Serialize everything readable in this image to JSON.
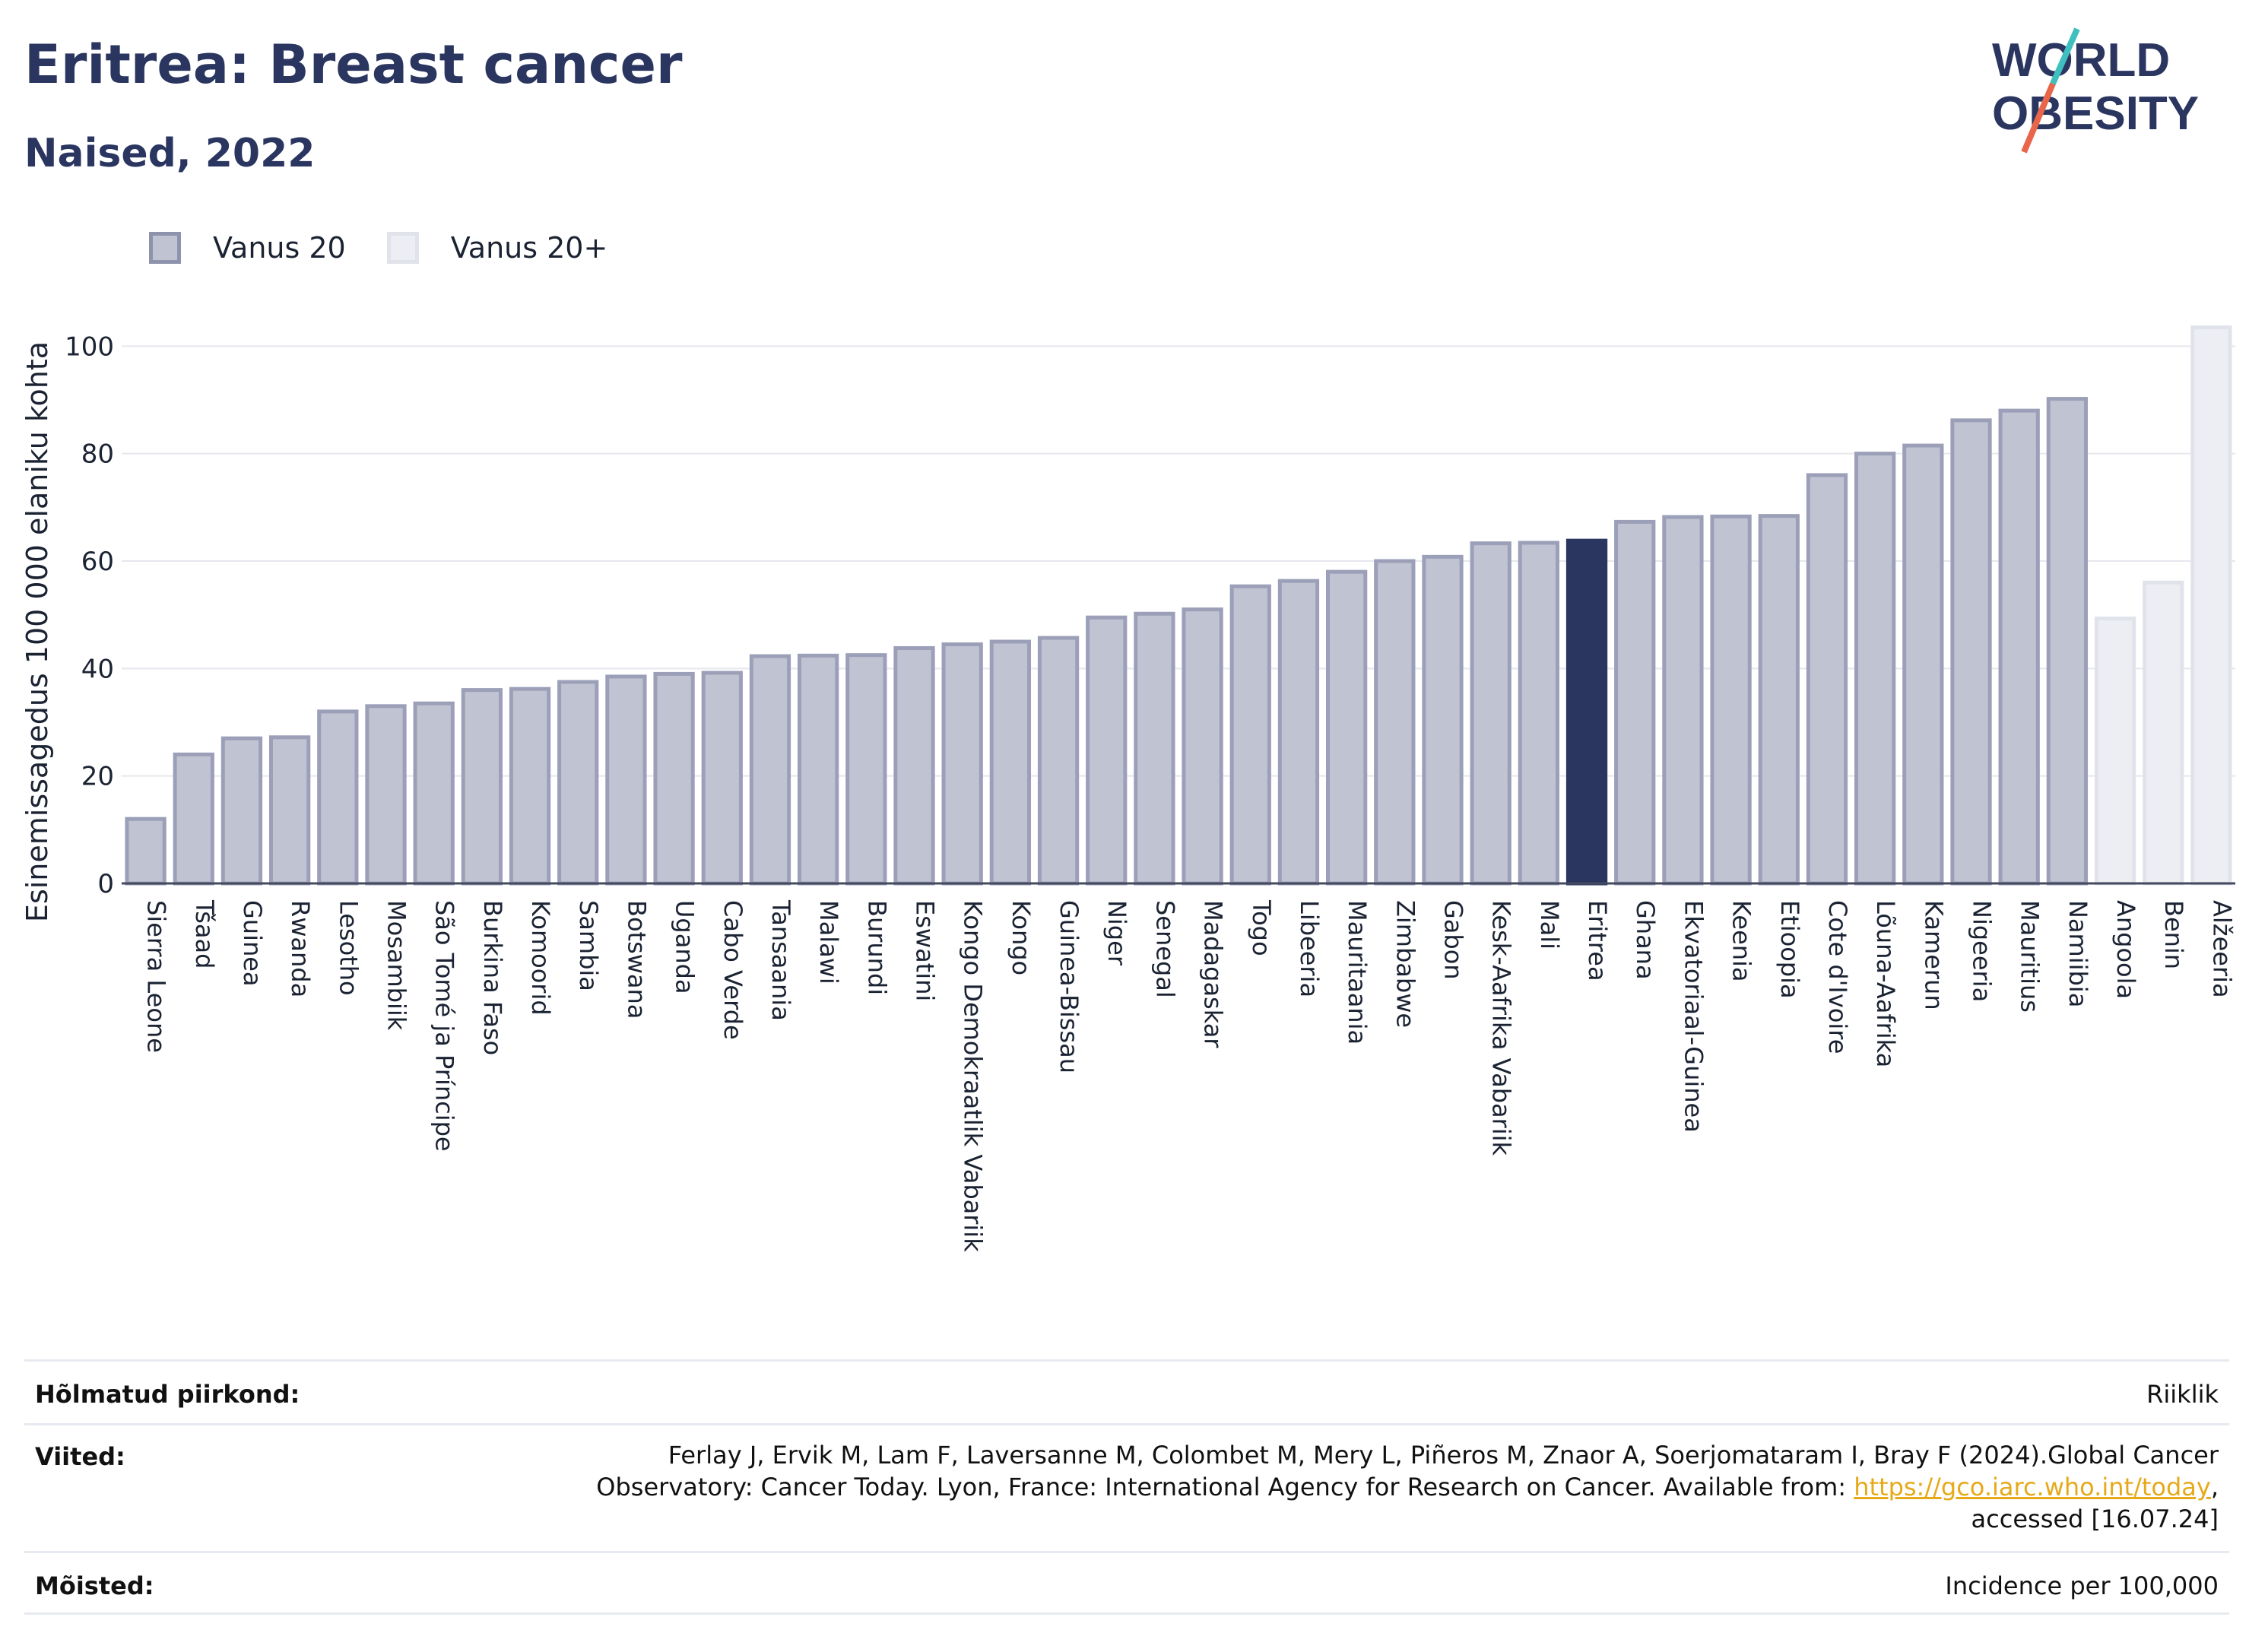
{
  "header": {
    "title": "Eritrea: Breast cancer",
    "subtitle": "Naised, 2022"
  },
  "logo": {
    "line1": "WORLD",
    "line2": "OBESITY",
    "colors": {
      "text": "#2a3560",
      "slash_teal": "#3fbfbf",
      "slash_red": "#e8664a"
    }
  },
  "legend": [
    {
      "label": "Vanus 20",
      "fill": "#c0c3d2",
      "stroke": "#8e93ad"
    },
    {
      "label": "Vanus 20+",
      "fill": "#eceef3",
      "stroke": "#e1e3ea"
    }
  ],
  "chart_data": {
    "type": "bar",
    "ylabel": "Esinemissagedus 100 000 elaniku kohta",
    "ylim": [
      0,
      105
    ],
    "yticks": [
      0,
      20,
      40,
      60,
      80,
      100
    ],
    "grid": true,
    "legend_position": "top-left",
    "categories": [
      "Sierra Leone",
      "Tšaad",
      "Guinea",
      "Rwanda",
      "Lesotho",
      "Mosambiik",
      "São Tomé ja Príncipe",
      "Burkina Faso",
      "Komoorid",
      "Sambia",
      "Botswana",
      "Uganda",
      "Cabo Verde",
      "Tansaania",
      "Malawi",
      "Burundi",
      "Eswatini",
      "Kongo Demokraatlik Vabariik",
      "Kongo",
      "Guinea-Bissau",
      "Niger",
      "Senegal",
      "Madagaskar",
      "Togo",
      "Libeeria",
      "Mauritaania",
      "Zimbabwe",
      "Gabon",
      "Kesk-Aafrika Vabariik",
      "Mali",
      "Eritrea",
      "Ghana",
      "Ekvatoriaal-Guinea",
      "Keenia",
      "Etioopia",
      "Cote d'Ivoire",
      "Lõuna-Aafrika",
      "Kamerun",
      "Nigeeria",
      "Mauritius",
      "Namiibia",
      "Angoola",
      "Benin",
      "Alžeeria"
    ],
    "values": [
      12,
      24,
      27,
      27.2,
      32,
      33,
      33.5,
      36,
      36.2,
      37.5,
      38.5,
      39,
      39.2,
      42.3,
      42.4,
      42.5,
      43.8,
      44.5,
      45,
      45.7,
      49.5,
      50.2,
      51,
      55.3,
      56.3,
      58,
      60,
      60.8,
      63.3,
      63.4,
      63.8,
      67.3,
      68.2,
      68.3,
      68.4,
      76,
      80,
      81.5,
      86.2,
      88,
      90.2,
      49.3,
      56,
      103.5
    ],
    "series_group": [
      "Vanus 20",
      "Vanus 20",
      "Vanus 20",
      "Vanus 20",
      "Vanus 20",
      "Vanus 20",
      "Vanus 20",
      "Vanus 20",
      "Vanus 20",
      "Vanus 20",
      "Vanus 20",
      "Vanus 20",
      "Vanus 20",
      "Vanus 20",
      "Vanus 20",
      "Vanus 20",
      "Vanus 20",
      "Vanus 20",
      "Vanus 20",
      "Vanus 20",
      "Vanus 20",
      "Vanus 20",
      "Vanus 20",
      "Vanus 20",
      "Vanus 20",
      "Vanus 20",
      "Vanus 20",
      "Vanus 20",
      "Vanus 20",
      "Vanus 20",
      "Vanus 20",
      "Vanus 20",
      "Vanus 20",
      "Vanus 20",
      "Vanus 20",
      "Vanus 20",
      "Vanus 20",
      "Vanus 20",
      "Vanus 20",
      "Vanus 20",
      "Vanus 20",
      "Vanus 20+",
      "Vanus 20+",
      "Vanus 20+"
    ],
    "highlight": "Eritrea",
    "highlight_color": "#2a3560"
  },
  "info": {
    "region_label": "Hõlmatud piirkond:",
    "region_value": "Riiklik",
    "refs_label": "Viited:",
    "refs_line1": "Ferlay J, Ervik M, Lam F, Laversanne M, Colombet M, Mery L, Piñeros M, Znaor A, Soerjomataram I, Bray F (2024).Global Cancer",
    "refs_line2_pre": "Observatory: Cancer Today. Lyon, France: International Agency for Research on Cancer. Available from: ",
    "refs_link": "https://gco.iarc.who.int/today",
    "refs_line2_post": ",",
    "refs_line3": "accessed [16.07.24]",
    "defs_label": "Mõisted:",
    "defs_value": "Incidence per 100,000"
  }
}
